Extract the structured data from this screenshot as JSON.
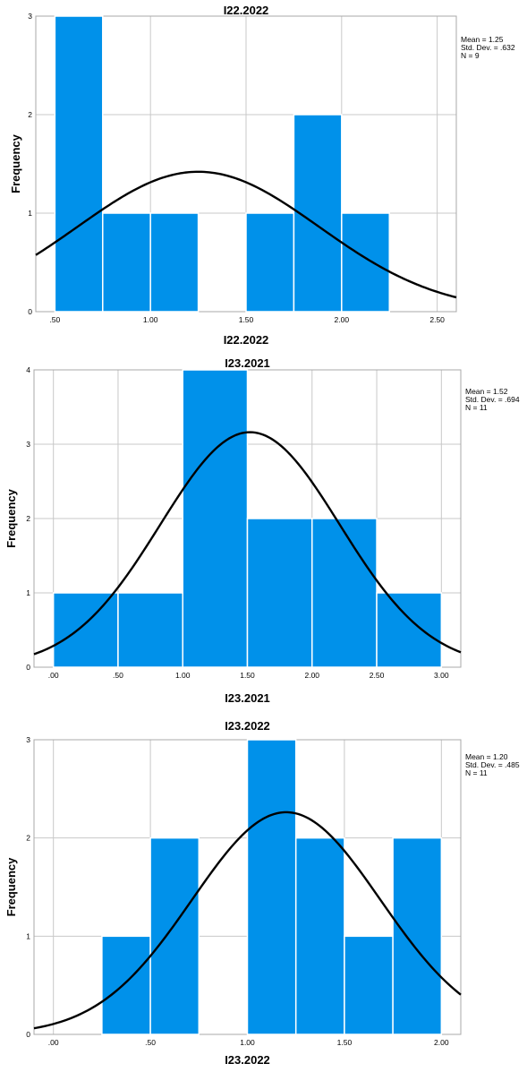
{
  "colors": {
    "bar": "#0091ea",
    "curve": "#000000",
    "grid": "#c8c8c8"
  },
  "chart_data": [
    {
      "type": "bar",
      "title": "I22.2022",
      "xlabel": "I22.2022",
      "ylabel": "Frequency",
      "grid": true,
      "legend_position": "top-right",
      "stats": [
        "Mean = 1.25",
        "Std. Dev. = .632",
        "N = 9"
      ],
      "mean": 1.25,
      "sd": 0.632,
      "n": 9,
      "bin_width": 0.25,
      "xlim": [
        0.4,
        2.6
      ],
      "ylim": [
        0,
        3
      ],
      "x_ticks": [
        0.5,
        1.0,
        1.5,
        2.0,
        2.5
      ],
      "x_tick_labels": [
        ".50",
        "1.00",
        "1.50",
        "2.00",
        "2.50"
      ],
      "y_ticks": [
        0,
        1,
        2,
        3
      ],
      "y_tick_labels": [
        "0",
        "1",
        "2",
        "3"
      ],
      "bins": [
        {
          "start": 0.5,
          "end": 0.75,
          "count": 3
        },
        {
          "start": 0.75,
          "end": 1.0,
          "count": 1
        },
        {
          "start": 1.0,
          "end": 1.25,
          "count": 1
        },
        {
          "start": 1.5,
          "end": 1.75,
          "count": 1
        },
        {
          "start": 1.75,
          "end": 2.0,
          "count": 2
        },
        {
          "start": 2.0,
          "end": 2.25,
          "count": 1
        }
      ]
    },
    {
      "type": "bar",
      "title": "I23.2021",
      "xlabel": "I23.2021",
      "ylabel": "Frequency",
      "grid": true,
      "legend_position": "top-right",
      "stats": [
        "Mean = 1.52",
        "Std. Dev. = .694",
        "N = 11"
      ],
      "mean": 1.52,
      "sd": 0.694,
      "n": 11,
      "bin_width": 0.5,
      "xlim": [
        -0.15,
        3.15
      ],
      "ylim": [
        0,
        4
      ],
      "x_ticks": [
        0,
        0.5,
        1.0,
        1.5,
        2.0,
        2.5,
        3.0
      ],
      "x_tick_labels": [
        ".00",
        ".50",
        "1.00",
        "1.50",
        "2.00",
        "2.50",
        "3.00"
      ],
      "y_ticks": [
        0,
        1,
        2,
        3,
        4
      ],
      "y_tick_labels": [
        "0",
        "1",
        "2",
        "3",
        "4"
      ],
      "bins": [
        {
          "start": 0.0,
          "end": 0.5,
          "count": 1
        },
        {
          "start": 0.5,
          "end": 1.0,
          "count": 1
        },
        {
          "start": 1.0,
          "end": 1.5,
          "count": 4
        },
        {
          "start": 1.5,
          "end": 2.0,
          "count": 2
        },
        {
          "start": 2.0,
          "end": 2.5,
          "count": 2
        },
        {
          "start": 2.5,
          "end": 3.0,
          "count": 1
        }
      ]
    },
    {
      "type": "bar",
      "title": "I23.2022",
      "xlabel": "I23.2022",
      "ylabel": "Frequency",
      "grid": true,
      "legend_position": "top-right",
      "stats": [
        "Mean = 1.20",
        "Std. Dev. = .485",
        "N = 11"
      ],
      "mean": 1.2,
      "sd": 0.485,
      "n": 11,
      "bin_width": 0.25,
      "xlim": [
        -0.1,
        2.1
      ],
      "ylim": [
        0,
        3
      ],
      "x_ticks": [
        0,
        0.5,
        1.0,
        1.5,
        2.0
      ],
      "x_tick_labels": [
        ".00",
        ".50",
        "1.00",
        "1.50",
        "2.00"
      ],
      "y_ticks": [
        0,
        1,
        2,
        3
      ],
      "y_tick_labels": [
        "0",
        "1",
        "2",
        "3"
      ],
      "bins": [
        {
          "start": 0.25,
          "end": 0.5,
          "count": 1
        },
        {
          "start": 0.5,
          "end": 0.75,
          "count": 2
        },
        {
          "start": 1.0,
          "end": 1.25,
          "count": 3
        },
        {
          "start": 1.25,
          "end": 1.5,
          "count": 2
        },
        {
          "start": 1.5,
          "end": 1.75,
          "count": 1
        },
        {
          "start": 1.75,
          "end": 2.0,
          "count": 2
        }
      ]
    }
  ]
}
